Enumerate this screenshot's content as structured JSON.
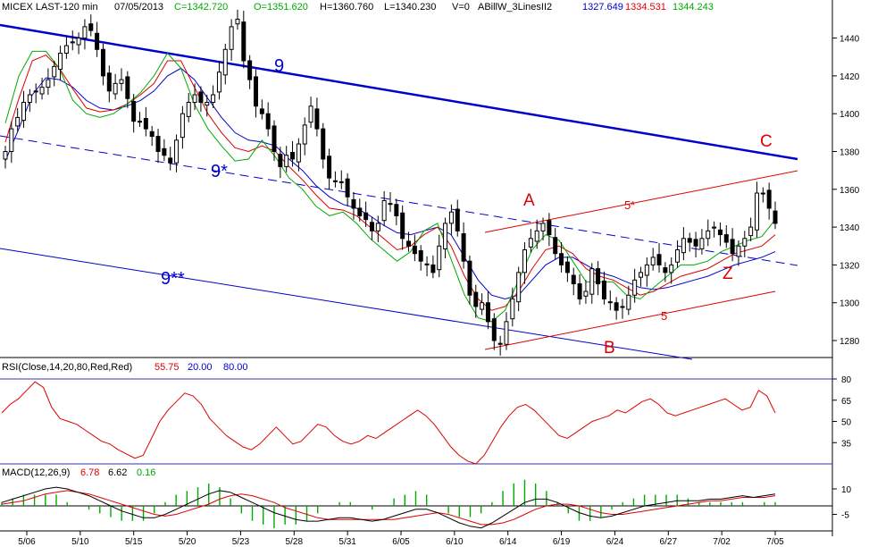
{
  "header": {
    "symbol": "MICEX LAST-120 min",
    "date": "07/05/2013",
    "close": "C=1342.720",
    "open": "O=1351.620",
    "high": "H=1360.760",
    "low": "L=1340.230",
    "volume": "V=0",
    "study": "ABillW_3LinesII2",
    "ma1": "1327.649",
    "ma2": "1334.531",
    "ma3": "1344.243"
  },
  "colors": {
    "blue": "#0000cc",
    "red": "#dd0000",
    "green": "#00aa00",
    "grid": "#3333aa"
  },
  "annotations": {
    "line9": "9",
    "line9star": "9*",
    "line9dstar": "9**",
    "line5": "5",
    "line5star": "5*",
    "pointA": "A",
    "pointB": "B",
    "pointC": "C",
    "pointZ": "Z"
  },
  "rsi_header": {
    "label": "RSI(Close,14,20,80,Red,Red)",
    "value": "55.75",
    "low": "20.00",
    "high": "80.00"
  },
  "macd_header": {
    "label": "MACD(12,26,9)",
    "macd": "6.78",
    "signal": "6.62",
    "hist": "0.16"
  },
  "chart_data": [
    {
      "type": "candlestick",
      "name": "price",
      "yticks": [
        1280,
        1300,
        1320,
        1340,
        1360,
        1380,
        1400,
        1420,
        1440
      ],
      "ylim": [
        1270,
        1452
      ],
      "xticks": [
        "5/06",
        "5/10",
        "5/15",
        "5/20",
        "5/23",
        "5/28",
        "5/31",
        "6/05",
        "6/10",
        "6/14",
        "6/19",
        "6/24",
        "6/27",
        "7/02",
        "7/05"
      ],
      "close": [
        1380,
        1392,
        1398,
        1406,
        1410,
        1412,
        1414,
        1418,
        1425,
        1432,
        1436,
        1438,
        1440,
        1446,
        1444,
        1434,
        1420,
        1412,
        1416,
        1418,
        1408,
        1396,
        1396,
        1392,
        1388,
        1380,
        1378,
        1374,
        1386,
        1400,
        1406,
        1410,
        1406,
        1406,
        1410,
        1422,
        1434,
        1446,
        1450,
        1428,
        1418,
        1404,
        1400,
        1392,
        1380,
        1372,
        1378,
        1376,
        1384,
        1394,
        1404,
        1392,
        1376,
        1366,
        1364,
        1364,
        1356,
        1350,
        1346,
        1344,
        1338,
        1342,
        1354,
        1352,
        1346,
        1334,
        1330,
        1326,
        1322,
        1320,
        1316,
        1330,
        1342,
        1348,
        1338,
        1322,
        1304,
        1298,
        1300,
        1290,
        1280,
        1278,
        1290,
        1302,
        1316,
        1328,
        1334,
        1338,
        1342,
        1336,
        1326,
        1320,
        1316,
        1310,
        1302,
        1306,
        1318,
        1310,
        1302,
        1300,
        1296,
        1298,
        1304,
        1312,
        1316,
        1320,
        1324,
        1320,
        1316,
        1320,
        1328,
        1334,
        1332,
        1330,
        1334,
        1338,
        1340,
        1336,
        1332,
        1326,
        1330,
        1334,
        1340,
        1358,
        1358,
        1350,
        1342
      ],
      "ma_green": [
        1395,
        1420,
        1433,
        1433,
        1424,
        1407,
        1400,
        1398,
        1400,
        1405,
        1411,
        1420,
        1432,
        1424,
        1405,
        1392,
        1383,
        1375,
        1376,
        1386,
        1377,
        1366,
        1360,
        1351,
        1346,
        1348,
        1342,
        1334,
        1328,
        1322,
        1327,
        1338,
        1342,
        1323,
        1304,
        1292,
        1290,
        1296,
        1312,
        1328,
        1336,
        1333,
        1322,
        1311,
        1311,
        1311,
        1304,
        1302,
        1308,
        1314,
        1320,
        1320,
        1322,
        1327,
        1330,
        1333,
        1335,
        1344
      ],
      "ma_red": [
        1385,
        1408,
        1428,
        1431,
        1424,
        1413,
        1403,
        1401,
        1402,
        1405,
        1410,
        1416,
        1428,
        1428,
        1414,
        1400,
        1390,
        1382,
        1380,
        1383,
        1380,
        1372,
        1365,
        1357,
        1350,
        1349,
        1346,
        1340,
        1334,
        1328,
        1330,
        1336,
        1340,
        1330,
        1314,
        1302,
        1296,
        1298,
        1306,
        1318,
        1328,
        1330,
        1326,
        1318,
        1314,
        1312,
        1308,
        1304,
        1306,
        1310,
        1314,
        1316,
        1318,
        1322,
        1326,
        1328,
        1330,
        1336
      ],
      "ma_blue": [
        1375,
        1392,
        1410,
        1419,
        1418,
        1414,
        1407,
        1403,
        1402,
        1404,
        1407,
        1412,
        1420,
        1424,
        1418,
        1408,
        1398,
        1390,
        1386,
        1385,
        1383,
        1376,
        1370,
        1362,
        1356,
        1352,
        1350,
        1346,
        1341,
        1337,
        1336,
        1338,
        1340,
        1336,
        1324,
        1312,
        1304,
        1302,
        1304,
        1312,
        1320,
        1324,
        1324,
        1320,
        1316,
        1314,
        1311,
        1308,
        1307,
        1308,
        1310,
        1312,
        1314,
        1317,
        1320,
        1322,
        1324,
        1327
      ]
    },
    {
      "type": "line",
      "name": "RSI",
      "yticks": [
        35,
        50,
        65,
        80
      ],
      "ylim": [
        18,
        85
      ],
      "values": [
        56,
        62,
        66,
        72,
        78,
        74,
        60,
        52,
        50,
        48,
        44,
        40,
        36,
        34,
        30,
        27,
        24,
        26,
        38,
        50,
        58,
        64,
        70,
        68,
        62,
        52,
        46,
        40,
        36,
        32,
        30,
        34,
        40,
        46,
        40,
        34,
        36,
        42,
        48,
        46,
        40,
        36,
        34,
        36,
        40,
        38,
        42,
        46,
        50,
        54,
        58,
        54,
        48,
        40,
        32,
        26,
        22,
        20,
        26,
        36,
        46,
        54,
        60,
        62,
        58,
        52,
        46,
        40,
        38,
        42,
        46,
        50,
        52,
        54,
        58,
        56,
        60,
        64,
        66,
        62,
        56,
        54,
        56,
        58,
        60,
        62,
        64,
        66,
        62,
        58,
        60,
        72,
        68,
        56
      ]
    },
    {
      "type": "line",
      "name": "MACD",
      "yticks": [
        10,
        -5
      ],
      "ylim": [
        -14,
        18
      ],
      "macd": [
        2,
        4,
        6,
        8,
        10,
        11,
        10,
        8,
        6,
        3,
        0,
        -3,
        -5,
        -7,
        -7,
        -5,
        -2,
        1,
        4,
        7,
        9,
        8,
        5,
        2,
        -1,
        -4,
        -6,
        -8,
        -9,
        -9,
        -8,
        -7,
        -7,
        -8,
        -9,
        -8,
        -6,
        -4,
        -2,
        -2,
        -4,
        -7,
        -10,
        -12,
        -13,
        -10,
        -6,
        -2,
        2,
        4,
        4,
        2,
        -1,
        -4,
        -6,
        -7,
        -6,
        -4,
        -2,
        0,
        1,
        2,
        3,
        3,
        3,
        4,
        4,
        5,
        6,
        5,
        6,
        7
      ],
      "signal": [
        1,
        2,
        3,
        5,
        7,
        8,
        9,
        8,
        7,
        5,
        3,
        1,
        -1,
        -3,
        -5,
        -6,
        -5,
        -3,
        -1,
        1,
        4,
        6,
        7,
        6,
        4,
        2,
        -1,
        -3,
        -5,
        -7,
        -8,
        -8,
        -8,
        -8,
        -8,
        -8,
        -8,
        -7,
        -6,
        -5,
        -4,
        -5,
        -7,
        -9,
        -11,
        -11,
        -10,
        -8,
        -5,
        -2,
        0,
        1,
        1,
        0,
        -2,
        -4,
        -5,
        -5,
        -4,
        -3,
        -2,
        -1,
        0,
        1,
        2,
        3,
        3,
        4,
        5,
        5,
        5,
        6
      ]
    }
  ]
}
